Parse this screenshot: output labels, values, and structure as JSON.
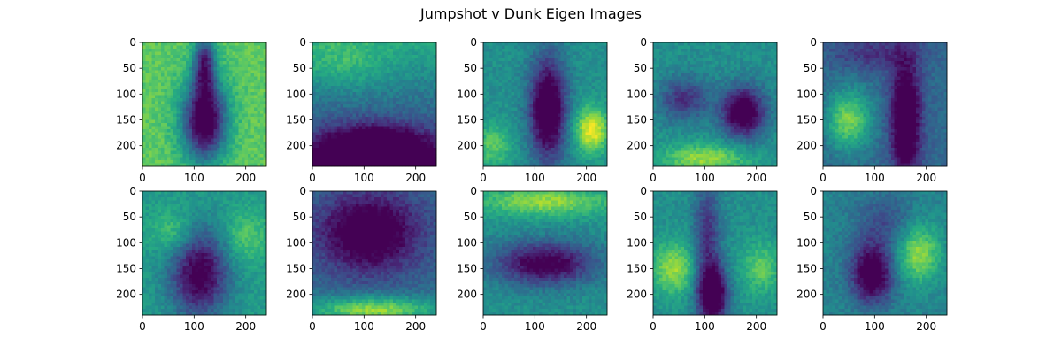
{
  "title": "Jumpshot v Dunk Eigen Images",
  "colors": {
    "colormap": "viridis",
    "low": "#440154",
    "mid": "#21918c",
    "high": "#fde725",
    "axis": "#000000",
    "background": "#ffffff"
  },
  "chart_data": {
    "type": "heatmap",
    "title": "Jumpshot v Dunk Eigen Images",
    "grid": false,
    "layout": "2 rows x 5 columns",
    "colormap": "viridis",
    "image_size": [
      240,
      240
    ],
    "xlim": [
      0,
      240
    ],
    "ylim": [
      240,
      0
    ],
    "xticks": [
      0,
      100,
      200
    ],
    "yticks": [
      0,
      50,
      100,
      150,
      200
    ],
    "panels": [
      {
        "index": 1,
        "pattern": "dark upright figure on light background",
        "blobs": [
          {
            "x": 120,
            "y": 150,
            "sx": 30,
            "sy": 55,
            "a": -0.9
          },
          {
            "x": 120,
            "y": 40,
            "sx": 15,
            "sy": 40,
            "a": -0.6
          }
        ],
        "base": 0.75
      },
      {
        "index": 2,
        "pattern": "light top, dark bottom",
        "blobs": [
          {
            "x": 120,
            "y": 220,
            "sx": 70,
            "sy": 35,
            "a": -0.9
          },
          {
            "x": 60,
            "y": 40,
            "sx": 60,
            "sy": 35,
            "a": 0.15
          }
        ],
        "base": 0.6,
        "grad_y": -0.45
      },
      {
        "index": 3,
        "pattern": "dark vertical band, bright lower right",
        "blobs": [
          {
            "x": 125,
            "y": 130,
            "sx": 25,
            "sy": 70,
            "a": -0.7
          },
          {
            "x": 210,
            "y": 170,
            "sx": 22,
            "sy": 30,
            "a": 0.5
          },
          {
            "x": 20,
            "y": 200,
            "sx": 25,
            "sy": 30,
            "a": 0.25
          }
        ],
        "base": 0.5
      },
      {
        "index": 4,
        "pattern": "dark blob right-center, lighter bottom",
        "blobs": [
          {
            "x": 175,
            "y": 135,
            "sx": 30,
            "sy": 35,
            "a": -0.65
          },
          {
            "x": 60,
            "y": 110,
            "sx": 35,
            "sy": 30,
            "a": -0.35
          },
          {
            "x": 100,
            "y": 225,
            "sx": 60,
            "sy": 20,
            "a": 0.35
          }
        ],
        "base": 0.5
      },
      {
        "index": 5,
        "pattern": "dark vertical band right-of-center, light patch left",
        "blobs": [
          {
            "x": 160,
            "y": 150,
            "sx": 20,
            "sy": 80,
            "a": -0.6
          },
          {
            "x": 50,
            "y": 150,
            "sx": 30,
            "sy": 40,
            "a": 0.45
          },
          {
            "x": 100,
            "y": 20,
            "sx": 60,
            "sy": 25,
            "a": -0.2
          }
        ],
        "base": 0.35
      },
      {
        "index": 6,
        "pattern": "dark upright figure, lighter top corners",
        "blobs": [
          {
            "x": 110,
            "y": 160,
            "sx": 40,
            "sy": 60,
            "a": -0.6
          },
          {
            "x": 60,
            "y": 80,
            "sx": 30,
            "sy": 30,
            "a": 0.2
          },
          {
            "x": 200,
            "y": 90,
            "sx": 30,
            "sy": 35,
            "a": 0.2
          }
        ],
        "base": 0.55
      },
      {
        "index": 7,
        "pattern": "dark top-center, bright bottom",
        "blobs": [
          {
            "x": 110,
            "y": 80,
            "sx": 70,
            "sy": 55,
            "a": -0.5
          },
          {
            "x": 120,
            "y": 230,
            "sx": 90,
            "sy": 18,
            "a": 0.5
          }
        ],
        "base": 0.35
      },
      {
        "index": 8,
        "pattern": "dark horizontal blob in center, light top",
        "blobs": [
          {
            "x": 120,
            "y": 140,
            "sx": 70,
            "sy": 30,
            "a": -0.55
          },
          {
            "x": 120,
            "y": 20,
            "sx": 90,
            "sy": 20,
            "a": 0.35
          }
        ],
        "base": 0.5
      },
      {
        "index": 9,
        "pattern": "dark vertical band center-bottom, bright sides",
        "blobs": [
          {
            "x": 115,
            "y": 200,
            "sx": 20,
            "sy": 40,
            "a": -0.75
          },
          {
            "x": 105,
            "y": 80,
            "sx": 18,
            "sy": 70,
            "a": -0.35
          },
          {
            "x": 40,
            "y": 150,
            "sx": 30,
            "sy": 35,
            "a": 0.35
          },
          {
            "x": 210,
            "y": 150,
            "sx": 28,
            "sy": 35,
            "a": 0.25
          }
        ],
        "base": 0.5
      },
      {
        "index": 10,
        "pattern": "dark blob left-center, bright patch right",
        "blobs": [
          {
            "x": 95,
            "y": 160,
            "sx": 28,
            "sy": 40,
            "a": -0.6
          },
          {
            "x": 185,
            "y": 120,
            "sx": 30,
            "sy": 40,
            "a": 0.4
          },
          {
            "x": 120,
            "y": 60,
            "sx": 40,
            "sy": 40,
            "a": -0.2
          }
        ],
        "base": 0.45
      }
    ]
  }
}
